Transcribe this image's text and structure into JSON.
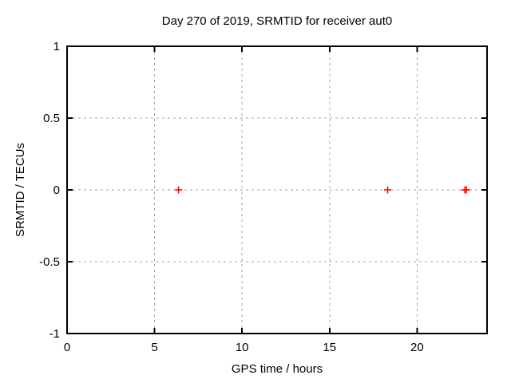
{
  "chart_data": {
    "type": "scatter",
    "title": "Day 270 of 2019, SRMTID for receiver aut0",
    "xlabel": "GPS time / hours",
    "ylabel": "SRMTID / TECUs",
    "xlim": [
      0,
      24
    ],
    "ylim": [
      -1,
      1
    ],
    "xticks": [
      0,
      5,
      10,
      15,
      20
    ],
    "xtick_labels": [
      "0",
      "5",
      "10",
      "15",
      "20"
    ],
    "yticks": [
      -1,
      -0.5,
      0,
      0.5,
      1
    ],
    "ytick_labels": [
      "-1",
      "-0.5",
      "0",
      "0.5",
      "1"
    ],
    "grid": true,
    "grid_style": "dashed",
    "grid_color": "#a6a6a6",
    "border_color": "#000000",
    "legend": "none",
    "series": [
      {
        "name": "SRMTID",
        "marker": "plus",
        "color": "#ff0000",
        "x": [
          6.37,
          18.32,
          22.73,
          22.82
        ],
        "y": [
          0,
          0,
          0,
          0
        ]
      }
    ]
  }
}
